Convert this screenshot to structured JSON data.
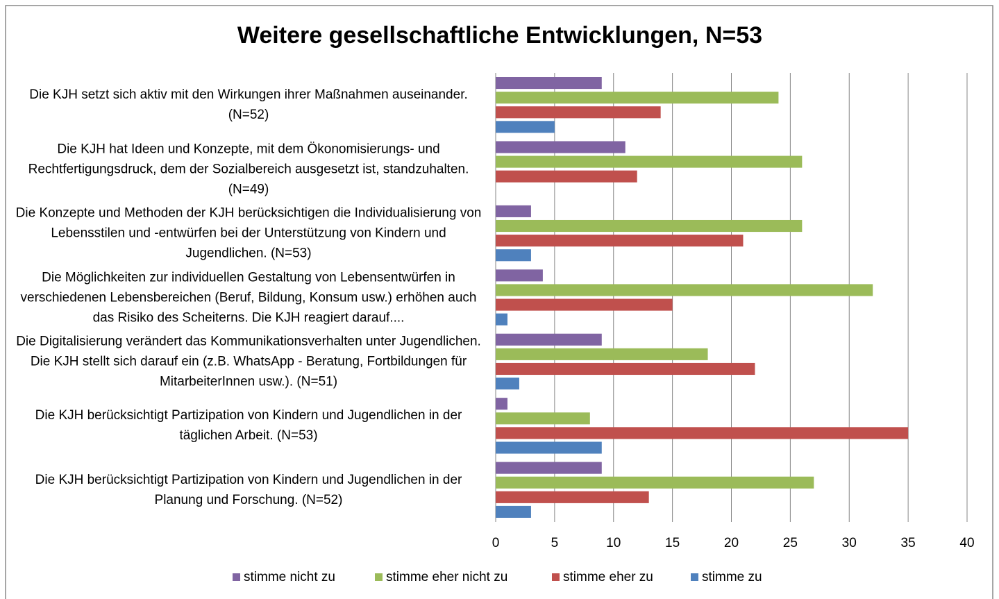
{
  "chart_data": {
    "type": "bar",
    "orientation": "horizontal",
    "title": "Weitere gesellschaftliche Entwicklungen, N=53",
    "categories": [
      "Die KJH setzt sich aktiv mit den Wirkungen ihrer Maßnahmen auseinander. (N=52)",
      "Die KJH hat Ideen und Konzepte, mit dem Ökonomisierungs- und Rechtfertigungsdruck, dem der Sozialbereich ausgesetzt ist, standzuhalten. (N=49)",
      "Die Konzepte und Methoden der KJH berücksichtigen die Individualisierung von Lebensstilen  und -entwürfen bei der Unterstützung von Kindern und Jugendlichen. (N=53)",
      "Die Möglichkeiten zur individuellen Gestaltung von Lebensentwürfen in verschiedenen Lebensbereichen (Beruf, Bildung, Konsum usw.) erhöhen auch das Risiko des Scheiterns. Die KJH reagiert darauf....",
      "Die Digitalisierung verändert das Kommunikationsverhalten unter Jugendlichen. Die KJH stellt sich darauf ein (z.B. WhatsApp - Beratung, Fortbildungen für MitarbeiterInnen usw.). (N=51)",
      "Die KJH berücksichtigt Partizipation von Kindern und Jugendlichen in der täglichen Arbeit. (N=53)",
      "Die KJH berücksichtigt Partizipation von Kindern und Jugendlichen in der Planung und Forschung. (N=52)"
    ],
    "series": [
      {
        "name": "stimme nicht zu",
        "color": "#8064a2",
        "values": [
          9,
          11,
          3,
          4,
          9,
          1,
          9
        ]
      },
      {
        "name": "stimme eher nicht zu",
        "color": "#9bbb59",
        "values": [
          24,
          26,
          26,
          32,
          18,
          8,
          27
        ]
      },
      {
        "name": "stimme eher zu",
        "color": "#c0504d",
        "values": [
          14,
          12,
          21,
          15,
          22,
          35,
          13
        ]
      },
      {
        "name": "stimme zu",
        "color": "#4f81bd",
        "values": [
          5,
          0,
          3,
          1,
          2,
          9,
          3
        ]
      }
    ],
    "xlim": [
      0,
      40
    ],
    "xticks": [
      0,
      5,
      10,
      15,
      20,
      25,
      30,
      35,
      40
    ],
    "grid": true,
    "legend": "bottom"
  }
}
